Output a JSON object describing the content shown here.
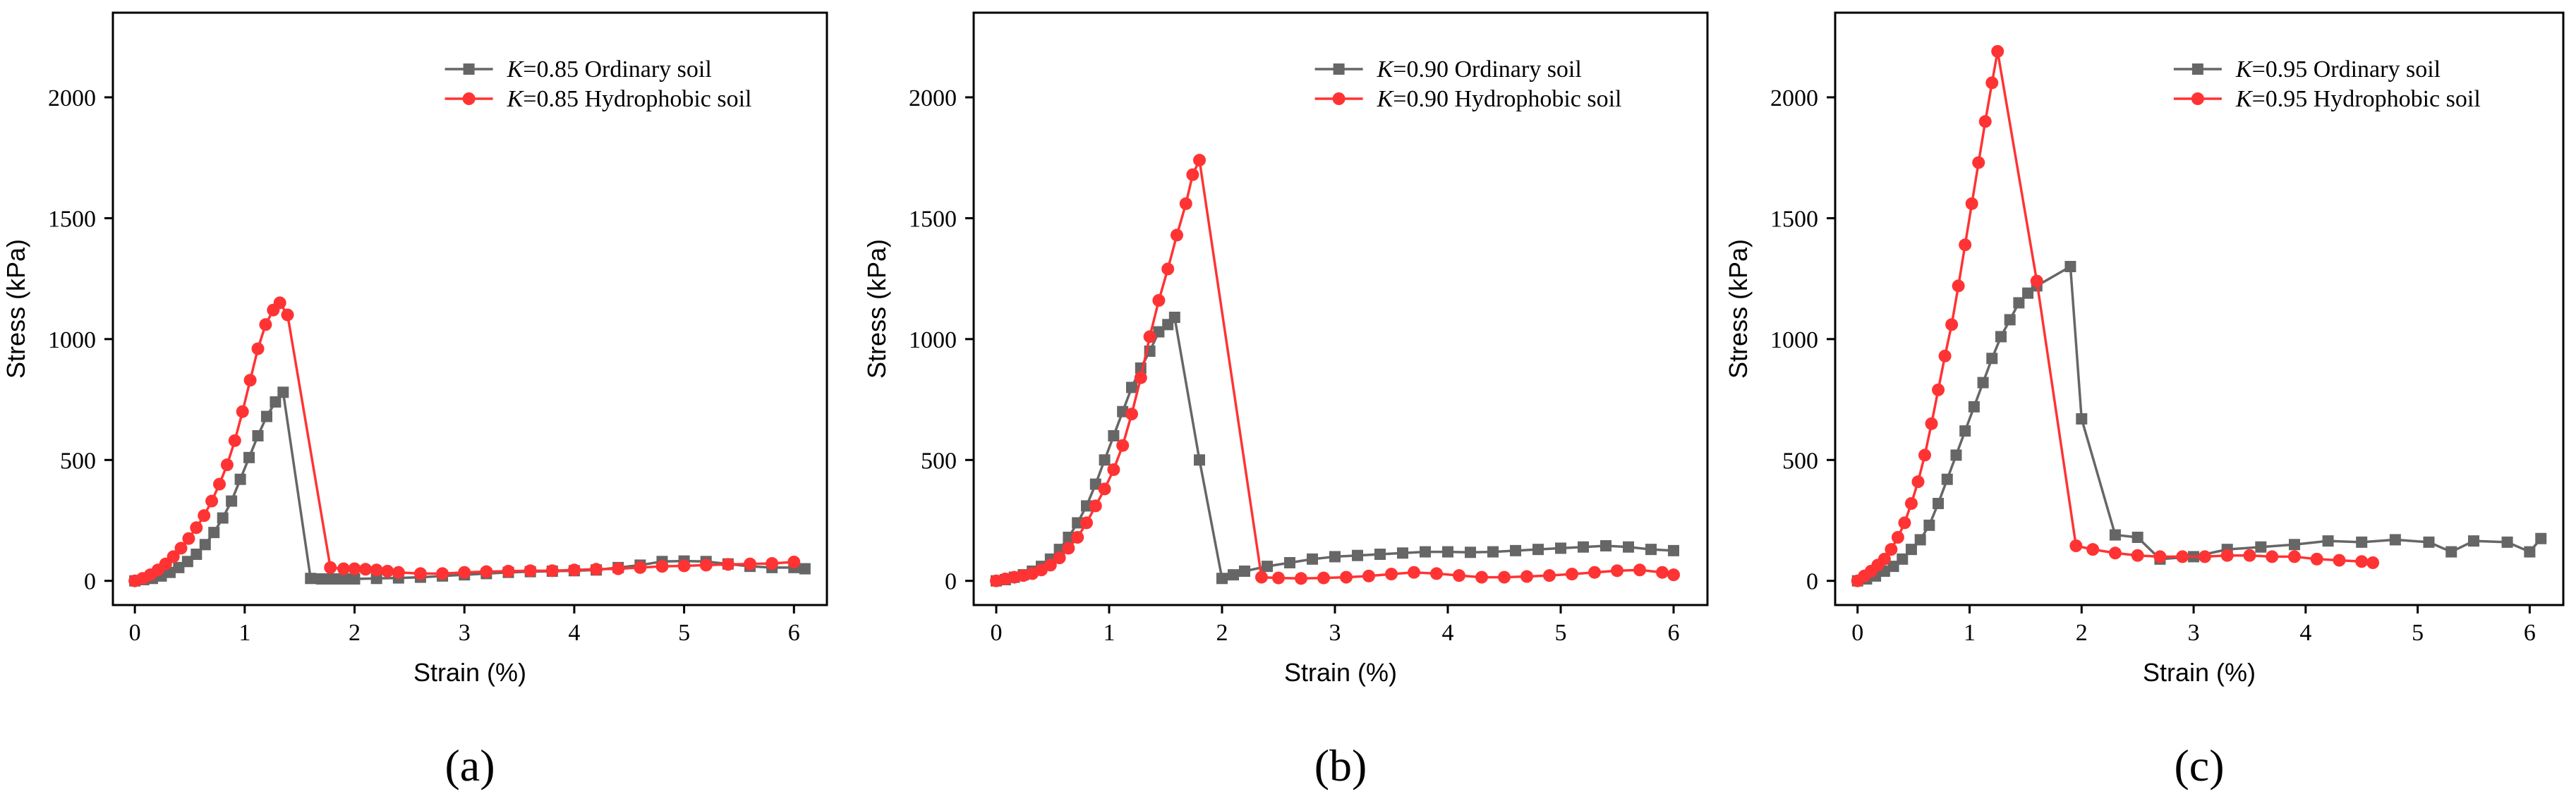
{
  "figure": {
    "panel_labels": [
      "(a)",
      "(b)",
      "(c)"
    ]
  },
  "colors": {
    "ordinary": "#666666",
    "hydrophobic": "#ff3333",
    "axis": "#000000"
  },
  "chart_data": [
    {
      "type": "line",
      "title": "",
      "xlabel": "Strain (%)",
      "ylabel": "Stress (kPa)",
      "xlim": [
        -0.2,
        6.3
      ],
      "ylim": [
        -100,
        2350
      ],
      "xticks": [
        0,
        1,
        2,
        3,
        4,
        5,
        6
      ],
      "yticks": [
        0,
        500,
        1000,
        1500,
        2000
      ],
      "series": [
        {
          "name": "K=0.85 Ordinary soil",
          "legend_prefix": "K",
          "legend_rest": "=0.85  Ordinary soil",
          "marker": "square",
          "x": [
            0,
            0.08,
            0.16,
            0.24,
            0.32,
            0.4,
            0.48,
            0.56,
            0.64,
            0.72,
            0.8,
            0.88,
            0.96,
            1.04,
            1.12,
            1.2,
            1.28,
            1.35,
            1.6,
            1.7,
            1.8,
            1.9,
            2.0,
            2.2,
            2.4,
            2.6,
            2.8,
            3.0,
            3.2,
            3.4,
            3.6,
            3.8,
            4.0,
            4.2,
            4.4,
            4.6,
            4.8,
            5.0,
            5.2,
            5.4,
            5.6,
            5.8,
            6.0,
            6.1
          ],
          "y": [
            0,
            5,
            10,
            20,
            35,
            55,
            80,
            110,
            150,
            200,
            260,
            330,
            420,
            510,
            600,
            680,
            740,
            780,
            10,
            8,
            8,
            8,
            8,
            10,
            12,
            15,
            20,
            25,
            30,
            35,
            38,
            40,
            42,
            45,
            55,
            65,
            80,
            82,
            80,
            70,
            60,
            55,
            55,
            50
          ]
        },
        {
          "name": "K=0.85 Hydrophobic soil",
          "legend_prefix": "K",
          "legend_rest": "=0.85  Hydrophobic soil",
          "marker": "circle",
          "x": [
            0,
            0.07,
            0.14,
            0.21,
            0.28,
            0.35,
            0.42,
            0.49,
            0.56,
            0.63,
            0.7,
            0.77,
            0.84,
            0.91,
            0.98,
            1.05,
            1.12,
            1.19,
            1.26,
            1.32,
            1.39,
            1.78,
            1.9,
            2.0,
            2.1,
            2.2,
            2.3,
            2.4,
            2.6,
            2.8,
            3.0,
            3.2,
            3.4,
            3.6,
            3.8,
            4.0,
            4.2,
            4.4,
            4.6,
            4.8,
            5.0,
            5.2,
            5.4,
            5.6,
            5.8,
            6.0
          ],
          "y": [
            0,
            10,
            25,
            45,
            70,
            100,
            135,
            175,
            220,
            270,
            330,
            400,
            480,
            580,
            700,
            830,
            960,
            1060,
            1120,
            1150,
            1100,
            55,
            50,
            50,
            48,
            45,
            40,
            35,
            30,
            30,
            35,
            38,
            40,
            42,
            42,
            45,
            48,
            50,
            55,
            60,
            62,
            65,
            68,
            70,
            72,
            78
          ]
        }
      ]
    },
    {
      "type": "line",
      "title": "",
      "xlabel": "Strain (%)",
      "ylabel": "Stress (kPa)",
      "xlim": [
        -0.2,
        6.3
      ],
      "ylim": [
        -100,
        2350
      ],
      "xticks": [
        0,
        1,
        2,
        3,
        4,
        5,
        6
      ],
      "yticks": [
        0,
        500,
        1000,
        1500,
        2000
      ],
      "series": [
        {
          "name": "K=0.90 Ordinary soil",
          "legend_prefix": "K",
          "legend_rest": "=0.90  Ordinary soil",
          "marker": "square",
          "x": [
            0,
            0.08,
            0.16,
            0.24,
            0.32,
            0.4,
            0.48,
            0.56,
            0.64,
            0.72,
            0.8,
            0.88,
            0.96,
            1.04,
            1.12,
            1.2,
            1.28,
            1.36,
            1.44,
            1.52,
            1.58,
            1.8,
            2.0,
            2.1,
            2.2,
            2.4,
            2.6,
            2.8,
            3.0,
            3.2,
            3.4,
            3.6,
            3.8,
            4.0,
            4.2,
            4.4,
            4.6,
            4.8,
            5.0,
            5.2,
            5.4,
            5.6,
            5.8,
            6.0
          ],
          "y": [
            0,
            5,
            15,
            25,
            40,
            60,
            90,
            130,
            180,
            240,
            310,
            400,
            500,
            600,
            700,
            800,
            880,
            950,
            1030,
            1060,
            1090,
            500,
            10,
            25,
            40,
            60,
            75,
            90,
            100,
            105,
            110,
            115,
            120,
            120,
            118,
            120,
            125,
            130,
            135,
            140,
            145,
            140,
            130,
            125
          ]
        },
        {
          "name": "K=0.90 Hydrophobic soil",
          "legend_prefix": "K",
          "legend_rest": "=0.90  Hydrophobic soil",
          "marker": "circle",
          "x": [
            0,
            0.08,
            0.16,
            0.24,
            0.32,
            0.4,
            0.48,
            0.56,
            0.64,
            0.72,
            0.8,
            0.88,
            0.96,
            1.04,
            1.12,
            1.2,
            1.28,
            1.36,
            1.44,
            1.52,
            1.6,
            1.68,
            1.74,
            1.8,
            2.35,
            2.5,
            2.7,
            2.9,
            3.1,
            3.3,
            3.5,
            3.7,
            3.9,
            4.1,
            4.3,
            4.5,
            4.7,
            4.9,
            5.1,
            5.3,
            5.5,
            5.7,
            5.9,
            6.0
          ],
          "y": [
            0,
            8,
            15,
            22,
            30,
            45,
            65,
            95,
            135,
            180,
            240,
            310,
            380,
            460,
            560,
            690,
            840,
            1010,
            1160,
            1290,
            1430,
            1560,
            1680,
            1740,
            15,
            12,
            10,
            12,
            15,
            20,
            28,
            35,
            30,
            22,
            15,
            15,
            18,
            22,
            28,
            35,
            42,
            45,
            35,
            25
          ]
        }
      ]
    },
    {
      "type": "line",
      "title": "",
      "xlabel": "Strain (%)",
      "ylabel": "Stress (kPa)",
      "xlim": [
        -0.2,
        6.3
      ],
      "ylim": [
        -100,
        2350
      ],
      "xticks": [
        0,
        1,
        2,
        3,
        4,
        5,
        6
      ],
      "yticks": [
        0,
        500,
        1000,
        1500,
        2000
      ],
      "series": [
        {
          "name": "K=0.95 Ordinary soil",
          "legend_prefix": "K",
          "legend_rest": "=0.95  Ordinary soil",
          "marker": "square",
          "x": [
            0,
            0.08,
            0.16,
            0.24,
            0.32,
            0.4,
            0.48,
            0.56,
            0.64,
            0.72,
            0.8,
            0.88,
            0.96,
            1.04,
            1.12,
            1.2,
            1.28,
            1.36,
            1.44,
            1.52,
            1.6,
            1.9,
            2.0,
            2.3,
            2.5,
            2.7,
            3.0,
            3.3,
            3.6,
            3.9,
            4.2,
            4.5,
            4.8,
            5.1,
            5.3,
            5.5,
            5.8,
            6.0,
            6.1
          ],
          "y": [
            0,
            8,
            20,
            40,
            60,
            90,
            130,
            170,
            230,
            320,
            420,
            520,
            620,
            720,
            820,
            920,
            1010,
            1080,
            1150,
            1190,
            1220,
            1300,
            670,
            190,
            180,
            90,
            100,
            130,
            140,
            150,
            165,
            160,
            170,
            160,
            120,
            165,
            160,
            120,
            175
          ]
        },
        {
          "name": "K=0.95 Hydrophobic soil",
          "legend_prefix": "K",
          "legend_rest": "=0.95  Hydrophobic soil",
          "marker": "circle",
          "x": [
            0,
            0.06,
            0.12,
            0.18,
            0.24,
            0.3,
            0.36,
            0.42,
            0.48,
            0.54,
            0.6,
            0.66,
            0.72,
            0.78,
            0.84,
            0.9,
            0.96,
            1.02,
            1.08,
            1.14,
            1.2,
            1.25,
            1.6,
            1.95,
            2.1,
            2.3,
            2.5,
            2.7,
            2.9,
            3.1,
            3.3,
            3.5,
            3.7,
            3.9,
            4.1,
            4.3,
            4.5,
            4.6
          ],
          "y": [
            0,
            20,
            40,
            65,
            90,
            130,
            180,
            240,
            320,
            410,
            520,
            650,
            790,
            930,
            1060,
            1220,
            1390,
            1560,
            1730,
            1900,
            2060,
            2190,
            1240,
            145,
            130,
            115,
            105,
            100,
            100,
            100,
            105,
            105,
            100,
            100,
            90,
            85,
            80,
            75
          ]
        }
      ]
    }
  ]
}
